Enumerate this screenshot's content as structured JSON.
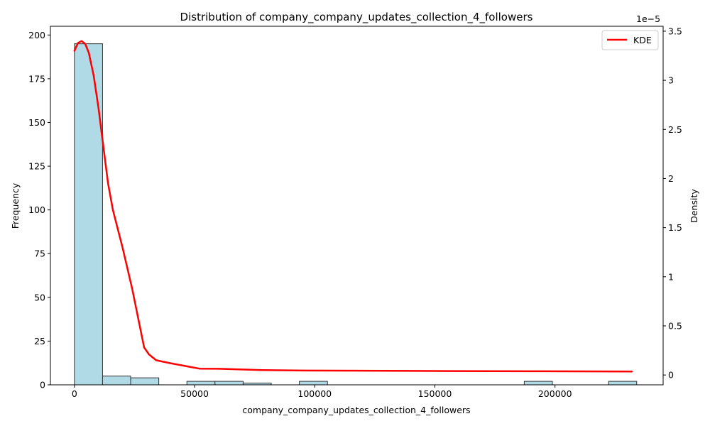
{
  "chart_data": {
    "type": "bar",
    "title": "Distribution of company_company_updates_collection_4_followers",
    "xlabel": "company_company_updates_collection_4_followers",
    "ylabel": "Frequency",
    "y2label": "Density",
    "y2_offset_text": "1e−5",
    "xlim": [
      -10000,
      245000
    ],
    "ylim": [
      0,
      205
    ],
    "y2lim": [
      -0.1,
      3.55
    ],
    "x_ticks": [
      0,
      50000,
      100000,
      150000,
      200000
    ],
    "y_ticks": [
      0,
      25,
      50,
      75,
      100,
      125,
      150,
      175,
      200
    ],
    "y2_ticks": [
      0.0,
      0.5,
      1.0,
      1.5,
      2.0,
      2.5,
      3.0,
      3.5
    ],
    "bin_width": 11700,
    "histogram": {
      "bin_starts": [
        0,
        11700,
        23400,
        35100,
        46800,
        58500,
        70200,
        81900,
        93600,
        105300,
        117000,
        128700,
        140400,
        152100,
        163800,
        175500,
        187200,
        198900,
        210600,
        222300
      ],
      "counts": [
        195,
        5,
        4,
        0,
        2,
        2,
        1,
        0,
        2,
        0,
        0,
        0,
        0,
        0,
        0,
        0,
        2,
        0,
        0,
        2
      ],
      "color": "#add8e6",
      "edgecolor": "#333333"
    },
    "series": [
      {
        "name": "KDE",
        "color": "#ff0000",
        "axis": "right",
        "x": [
          0,
          1500,
          3000,
          4500,
          6000,
          8000,
          10000,
          12000,
          14000,
          16000,
          20000,
          24000,
          29000,
          31000,
          34000,
          40000,
          52000,
          60000,
          78000,
          95000,
          140000,
          190000,
          232000
        ],
        "y": [
          3.3,
          3.38,
          3.4,
          3.37,
          3.28,
          3.05,
          2.72,
          2.33,
          1.95,
          1.68,
          1.3,
          0.88,
          0.28,
          0.21,
          0.15,
          0.12,
          0.065,
          0.063,
          0.05,
          0.045,
          0.042,
          0.038,
          0.036
        ]
      }
    ],
    "grid": false,
    "legend_position": "top-right"
  }
}
